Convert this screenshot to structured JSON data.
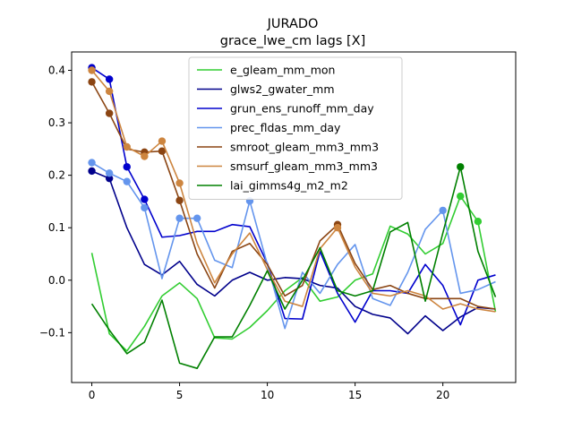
{
  "chart_data": {
    "type": "line",
    "title": "JURADO",
    "subtitle": "grace_lwe_cm lags [X]",
    "xlabel": "",
    "ylabel": "",
    "xlim": [
      -1.15,
      24.15
    ],
    "ylim": [
      -0.195,
      0.435
    ],
    "xticks": [
      0,
      5,
      10,
      15,
      20
    ],
    "yticks": [
      -0.1,
      0.0,
      0.1,
      0.2,
      0.3,
      0.4
    ],
    "ytick_labels": [
      "−0.1",
      "0.0",
      "0.1",
      "0.2",
      "0.3",
      "0.4"
    ],
    "grid": false,
    "legend_position": "top-center",
    "x": [
      0,
      1,
      2,
      3,
      4,
      5,
      6,
      7,
      8,
      9,
      10,
      11,
      12,
      13,
      14,
      15,
      16,
      17,
      18,
      19,
      20,
      21,
      22,
      23
    ],
    "series": [
      {
        "name": "e_gleam_mm_mon",
        "color": "#32cd32",
        "values": [
          0.052,
          -0.102,
          -0.135,
          -0.088,
          -0.03,
          -0.005,
          -0.035,
          -0.11,
          -0.112,
          -0.09,
          -0.058,
          -0.02,
          0.005,
          -0.04,
          -0.032,
          0.0,
          0.012,
          0.103,
          0.088,
          0.05,
          0.07,
          0.16,
          0.112,
          -0.06
        ],
        "markers": [
          21,
          22
        ]
      },
      {
        "name": "glws2_gwater_mm",
        "color": "#00008b",
        "values": [
          0.208,
          0.194,
          0.1,
          0.03,
          0.01,
          0.036,
          -0.008,
          -0.03,
          0.0,
          0.015,
          0.0,
          0.005,
          0.003,
          -0.01,
          -0.015,
          -0.05,
          -0.065,
          -0.072,
          -0.102,
          -0.068,
          -0.096,
          -0.07,
          -0.052,
          -0.055
        ],
        "markers": [
          0,
          1
        ]
      },
      {
        "name": "grun_ens_runoff_mm_day",
        "color": "#0000cd",
        "values": [
          0.405,
          0.383,
          0.216,
          0.154,
          0.082,
          0.085,
          0.093,
          0.093,
          0.106,
          0.102,
          0.032,
          -0.073,
          -0.074,
          0.055,
          -0.025,
          -0.08,
          -0.02,
          -0.02,
          -0.025,
          0.03,
          -0.01,
          -0.085,
          0.0,
          0.01
        ],
        "markers": [
          0,
          1,
          2,
          3
        ]
      },
      {
        "name": "prec_fldas_mm_day",
        "color": "#6495ed",
        "values": [
          0.224,
          0.204,
          0.188,
          0.138,
          0.003,
          0.118,
          0.118,
          0.038,
          0.024,
          0.151,
          0.03,
          -0.092,
          0.015,
          -0.025,
          0.03,
          0.068,
          -0.035,
          -0.048,
          0.015,
          0.097,
          0.133,
          -0.025,
          -0.018,
          -0.003
        ],
        "markers": [
          0,
          1,
          2,
          3,
          5,
          6,
          9,
          20
        ]
      },
      {
        "name": "smroot_gleam_mm3_mm3",
        "color": "#8b4513",
        "values": [
          0.378,
          0.318,
          0.25,
          0.244,
          0.246,
          0.152,
          0.05,
          -0.015,
          0.055,
          0.07,
          0.03,
          -0.03,
          -0.01,
          0.075,
          0.106,
          0.032,
          -0.018,
          -0.01,
          -0.025,
          -0.035,
          -0.035,
          -0.035,
          -0.05,
          -0.055
        ],
        "markers": [
          0,
          1,
          3,
          4,
          5,
          14
        ]
      },
      {
        "name": "smsurf_gleam_mm3_mm3",
        "color": "#cd853f",
        "values": [
          0.4,
          0.36,
          0.254,
          0.236,
          0.265,
          0.185,
          0.07,
          -0.005,
          0.05,
          0.09,
          0.02,
          -0.04,
          -0.05,
          0.06,
          0.1,
          0.025,
          -0.025,
          -0.03,
          -0.02,
          -0.03,
          -0.055,
          -0.045,
          -0.055,
          -0.06
        ],
        "markers": [
          0,
          1,
          2,
          3,
          4,
          5,
          14
        ]
      },
      {
        "name": "lai_gimms4g_m2_m2",
        "color": "#008000",
        "values": [
          -0.045,
          -0.095,
          -0.14,
          -0.118,
          -0.038,
          -0.158,
          -0.168,
          -0.108,
          -0.108,
          -0.048,
          0.018,
          -0.055,
          0.0,
          0.062,
          -0.02,
          -0.03,
          -0.02,
          0.092,
          0.11,
          -0.04,
          0.09,
          0.216,
          0.055,
          -0.032
        ],
        "markers": [
          21
        ]
      }
    ]
  }
}
